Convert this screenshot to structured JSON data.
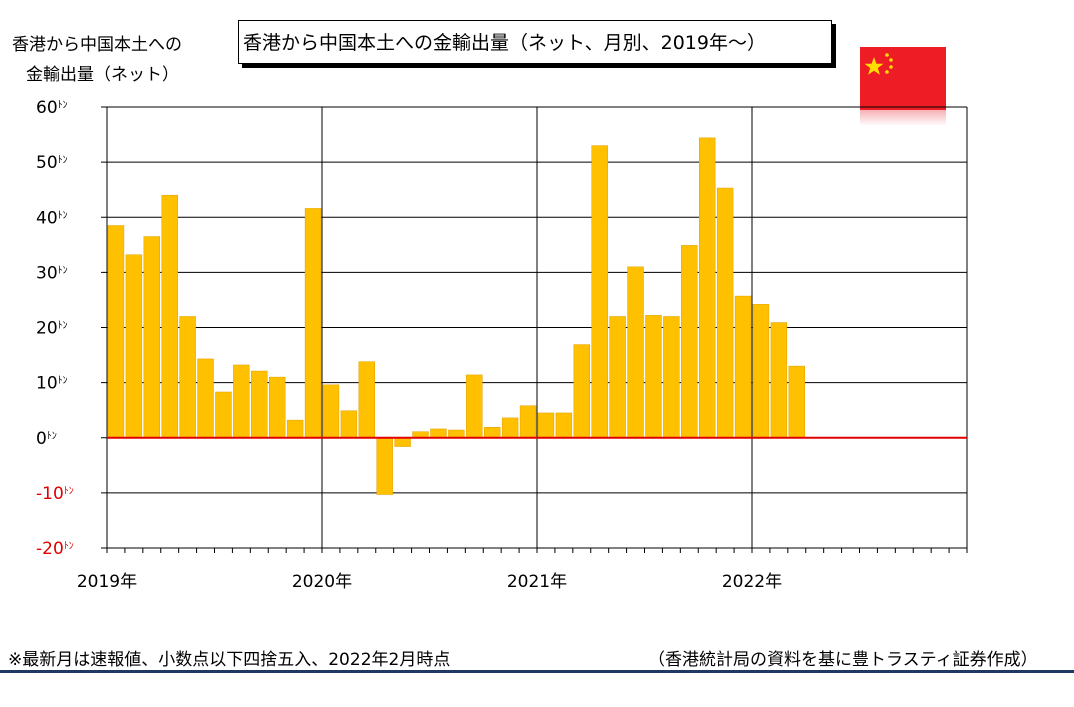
{
  "title": "香港から中国本土への金輸出量（ネット、月別、2019年～）",
  "y_axis_label": {
    "line1": "香港から中国本土への",
    "line2": "金輸出量（ネット）"
  },
  "footnote": "※最新月は速報値、小数点以下四捨五入、2022年2月時点",
  "source": "（香港統計局の資料を基に豊トラスティ証券作成）",
  "colors": {
    "bar": "#ffc000",
    "bar_edge": "#e0a000",
    "zero_line": "#e00000",
    "negative_tick": "#e00000",
    "grid": "#000000",
    "flag": "#ee1c25",
    "star": "#ffde00"
  },
  "icons": {
    "flag": "china-flag-icon"
  },
  "chart_data": {
    "type": "bar",
    "unit_suffix": "ﾄﾝ",
    "ylim": [
      -20,
      60
    ],
    "yticks": [
      60,
      50,
      40,
      30,
      20,
      10,
      0,
      -10,
      -20
    ],
    "ytick_labels": [
      "60ﾄﾝ",
      "50ﾄﾝ",
      "40ﾄﾝ",
      "30ﾄﾝ",
      "20ﾄﾝ",
      "10ﾄﾝ",
      "0ﾄﾝ",
      "-10ﾄﾝ",
      "-20ﾄﾝ"
    ],
    "year_labels": [
      "2019年",
      "2020年",
      "2021年",
      "2022年"
    ],
    "total_months": 48,
    "grid": true,
    "categories": [
      "2019-01",
      "2019-02",
      "2019-03",
      "2019-04",
      "2019-05",
      "2019-06",
      "2019-07",
      "2019-08",
      "2019-09",
      "2019-10",
      "2019-11",
      "2019-12",
      "2020-01",
      "2020-02",
      "2020-03",
      "2020-04",
      "2020-05",
      "2020-06",
      "2020-07",
      "2020-08",
      "2020-09",
      "2020-10",
      "2020-11",
      "2020-12",
      "2021-01",
      "2021-02",
      "2021-03",
      "2021-04",
      "2021-05",
      "2021-06",
      "2021-07",
      "2021-08",
      "2021-09",
      "2021-10",
      "2021-11",
      "2021-12",
      "2022-01",
      "2022-02",
      "2022-03",
      "2022-04"
    ],
    "values": [
      38.5,
      33.2,
      36.5,
      44,
      22,
      14.3,
      8.3,
      13.2,
      12.1,
      11,
      3.2,
      41.6,
      9.6,
      4.9,
      13.8,
      -10.3,
      -1.6,
      1.1,
      1.6,
      1.4,
      11.4,
      1.9,
      3.6,
      5.8,
      4.5,
      4.5,
      16.9,
      53,
      22,
      31,
      22.2,
      22,
      34.9,
      54.4,
      45.3,
      25.7,
      24.2,
      20.9,
      13,
      0
    ]
  }
}
